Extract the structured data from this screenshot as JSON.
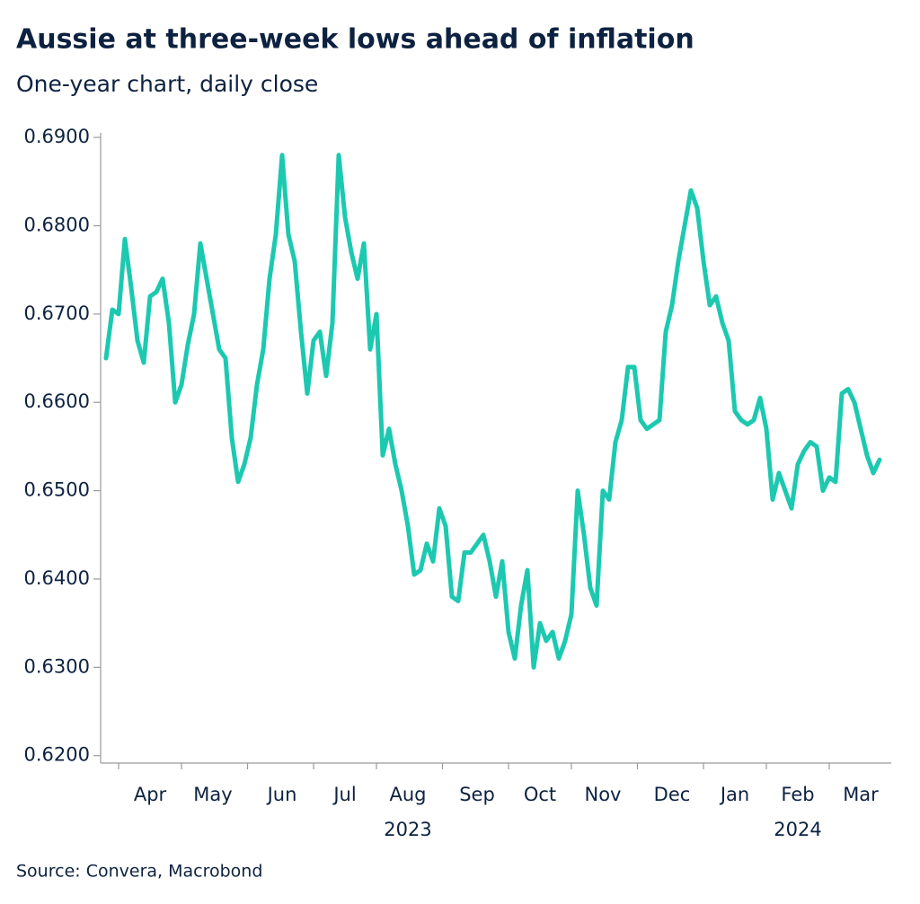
{
  "chart_data": {
    "type": "line",
    "title": "Aussie at three-week lows ahead of inflation",
    "subtitle": "One-year chart, daily close",
    "source": "Source: Convera, Macrobond",
    "categories": [
      null,
      null,
      null,
      null,
      null,
      null,
      null,
      "Apr",
      null,
      null,
      null,
      null,
      null,
      null,
      null,
      null,
      null,
      "May",
      null,
      null,
      null,
      null,
      null,
      null,
      null,
      null,
      null,
      null,
      "Jun",
      null,
      null,
      null,
      null,
      null,
      null,
      null,
      null,
      null,
      "Jul",
      null,
      null,
      null,
      null,
      null,
      null,
      null,
      null,
      null,
      "Aug",
      null,
      null,
      null,
      null,
      null,
      null,
      null,
      null,
      null,
      null,
      "Sep",
      null,
      null,
      null,
      null,
      null,
      null,
      null,
      null,
      null,
      "Oct",
      null,
      null,
      null,
      null,
      null,
      null,
      null,
      null,
      null,
      "Nov",
      null,
      null,
      null,
      null,
      null,
      null,
      null,
      null,
      null,
      null,
      "Dec",
      null,
      null,
      null,
      null,
      null,
      null,
      null,
      null,
      null,
      "Jan",
      null,
      null,
      null,
      null,
      null,
      null,
      null,
      null,
      null,
      "Feb",
      null,
      null,
      null,
      null,
      null,
      null,
      null,
      null,
      null,
      "Mar",
      null,
      null,
      null
    ],
    "category_years": [
      null,
      null,
      null,
      null,
      null,
      null,
      null,
      null,
      null,
      null,
      null,
      null,
      null,
      null,
      null,
      null,
      null,
      null,
      null,
      null,
      null,
      null,
      null,
      null,
      null,
      null,
      null,
      null,
      null,
      null,
      null,
      null,
      null,
      null,
      null,
      null,
      null,
      null,
      null,
      null,
      null,
      null,
      null,
      null,
      null,
      null,
      null,
      null,
      "2023",
      null,
      null,
      null,
      null,
      null,
      null,
      null,
      null,
      null,
      null,
      null,
      null,
      null,
      null,
      null,
      null,
      null,
      null,
      null,
      null,
      null,
      null,
      null,
      null,
      null,
      null,
      null,
      null,
      null,
      null,
      null,
      null,
      null,
      null,
      null,
      null,
      null,
      null,
      null,
      null,
      null,
      null,
      null,
      null,
      null,
      null,
      null,
      null,
      null,
      null,
      null,
      null,
      null,
      null,
      null,
      null,
      null,
      null,
      null,
      null,
      null,
      "2024",
      null,
      null,
      null,
      null,
      null,
      null,
      null,
      null,
      null,
      null,
      null,
      null,
      null
    ],
    "series": [
      {
        "color": "#1cc9b0",
        "values": [
          0.665,
          0.6705,
          0.67,
          0.6785,
          0.673,
          0.667,
          0.6645,
          0.672,
          0.6725,
          0.674,
          0.669,
          0.66,
          0.662,
          0.6665,
          0.67,
          0.678,
          0.674,
          0.67,
          0.666,
          0.665,
          0.656,
          0.651,
          0.653,
          0.656,
          0.662,
          0.666,
          0.674,
          0.679,
          0.688,
          0.679,
          0.676,
          0.668,
          0.661,
          0.667,
          0.668,
          0.663,
          0.669,
          0.688,
          0.681,
          0.677,
          0.674,
          0.678,
          0.666,
          0.67,
          0.654,
          0.657,
          0.653,
          0.65,
          0.646,
          0.6405,
          0.641,
          0.644,
          0.642,
          0.648,
          0.646,
          0.638,
          0.6375,
          0.643,
          0.643,
          0.644,
          0.645,
          0.642,
          0.638,
          0.642,
          0.634,
          0.631,
          0.637,
          0.641,
          0.63,
          0.635,
          0.633,
          0.634,
          0.631,
          0.633,
          0.636,
          0.65,
          0.645,
          0.639,
          0.637,
          0.65,
          0.649,
          0.6555,
          0.658,
          0.664,
          0.664,
          0.658,
          0.657,
          0.6575,
          0.658,
          0.668,
          0.671,
          0.676,
          0.68,
          0.684,
          0.682,
          0.676,
          0.671,
          0.672,
          0.669,
          0.667,
          0.659,
          0.658,
          0.6575,
          0.658,
          0.6605,
          0.657,
          0.649,
          0.652,
          0.65,
          0.648,
          0.653,
          0.6545,
          0.6555,
          0.655,
          0.65,
          0.6515,
          0.651,
          0.661,
          0.6615,
          0.66,
          0.657,
          0.654,
          0.652,
          0.6535
        ]
      }
    ],
    "ylim": [
      0.6185,
      0.6925
    ],
    "yticks": [
      {
        "value": 0.62,
        "label": "0.6200"
      },
      {
        "value": 0.63,
        "label": "0.6300"
      },
      {
        "value": 0.64,
        "label": "0.6400"
      },
      {
        "value": 0.65,
        "label": "0.6500"
      },
      {
        "value": 0.66,
        "label": "0.6600"
      },
      {
        "value": 0.67,
        "label": "0.6700"
      },
      {
        "value": 0.68,
        "label": "0.6800"
      },
      {
        "value": 0.69,
        "label": "0.6900"
      }
    ],
    "grid": false
  }
}
